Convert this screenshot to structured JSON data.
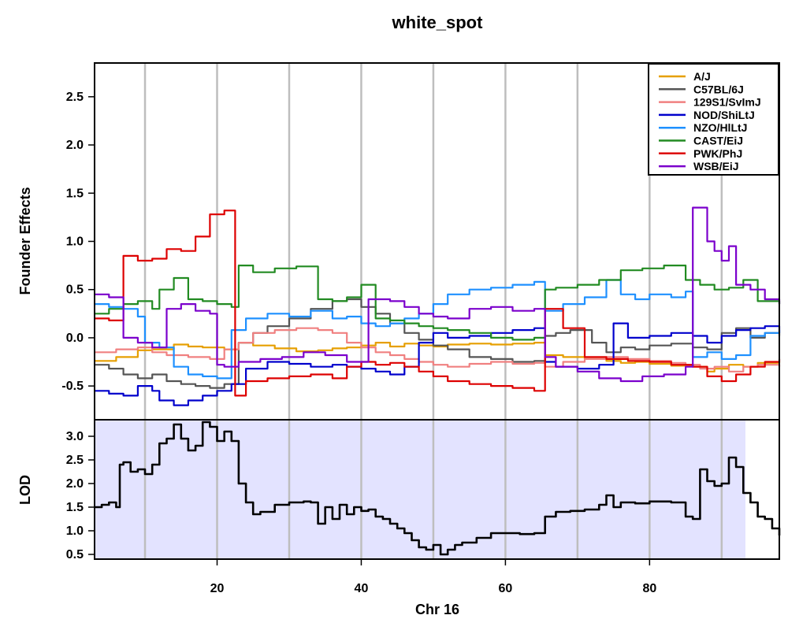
{
  "chart_data": [
    {
      "type": "line",
      "title": "white_spot",
      "ylabel": "Founder Effects",
      "xlim": [
        3,
        98
      ],
      "ylim": [
        -0.85,
        2.85
      ],
      "yticks": [
        -0.5,
        0.0,
        0.5,
        1.0,
        1.5,
        2.0,
        2.5
      ],
      "ytick_labels": [
        "-0.5",
        "0.0",
        "0.5",
        "1.0",
        "1.5",
        "2.0",
        "2.5"
      ],
      "vgrid_x": [
        10,
        20,
        30,
        40,
        50,
        60,
        70,
        80,
        90
      ],
      "legend_position": "top-right",
      "series": [
        {
          "name": "A/J",
          "color": "#E69F00",
          "step": true,
          "x": [
            3,
            6,
            9,
            11,
            14,
            16,
            18,
            21,
            23,
            25,
            28,
            31,
            34,
            36,
            38,
            40,
            42,
            44,
            46,
            48,
            50,
            52,
            55,
            58,
            61,
            64,
            65.5,
            68,
            71,
            74,
            76,
            78,
            80,
            83,
            86,
            88,
            89,
            91,
            93,
            95,
            98
          ],
          "y": [
            -0.24,
            -0.2,
            -0.13,
            -0.12,
            -0.07,
            -0.09,
            -0.1,
            -0.12,
            -0.05,
            -0.08,
            -0.11,
            -0.14,
            -0.13,
            -0.11,
            -0.1,
            -0.08,
            -0.05,
            -0.09,
            -0.06,
            -0.08,
            -0.09,
            -0.07,
            -0.06,
            -0.07,
            -0.06,
            -0.05,
            -0.18,
            -0.2,
            -0.22,
            -0.24,
            -0.26,
            -0.25,
            -0.27,
            -0.29,
            -0.3,
            -0.35,
            -0.32,
            -0.28,
            -0.3,
            -0.26,
            -0.25
          ]
        },
        {
          "name": "C57BL/6J",
          "color": "#555555",
          "step": true,
          "x": [
            3,
            5,
            7,
            9,
            11,
            13,
            15,
            17,
            19,
            21,
            23,
            25,
            27,
            30,
            33,
            36,
            38,
            40,
            42,
            44,
            46,
            48,
            50,
            52,
            55,
            58,
            61,
            64,
            65.5,
            67,
            69,
            72,
            74,
            76,
            78,
            80,
            83,
            86,
            88,
            90,
            92,
            94,
            96,
            98
          ],
          "y": [
            -0.28,
            -0.32,
            -0.38,
            -0.42,
            -0.38,
            -0.45,
            -0.48,
            -0.5,
            -0.52,
            -0.48,
            -0.05,
            0.05,
            0.12,
            0.2,
            0.3,
            0.38,
            0.4,
            0.32,
            0.25,
            0.15,
            0.05,
            -0.02,
            -0.08,
            -0.12,
            -0.2,
            -0.22,
            -0.25,
            -0.24,
            0.02,
            0.05,
            0.08,
            -0.05,
            -0.15,
            -0.1,
            -0.12,
            -0.08,
            -0.06,
            -0.1,
            -0.12,
            0.05,
            0.1,
            0.0,
            0.05,
            0.02
          ]
        },
        {
          "name": "129S1/SvImJ",
          "color": "#F08080",
          "step": true,
          "x": [
            3,
            6,
            9,
            11,
            13,
            16,
            19,
            21,
            23,
            25,
            28,
            31,
            34,
            36,
            38,
            40,
            42,
            44,
            46,
            48,
            50,
            52,
            55,
            58,
            61,
            64,
            65.5,
            68,
            71,
            74,
            77,
            80,
            83,
            85,
            87,
            89,
            91,
            93,
            95,
            98
          ],
          "y": [
            -0.15,
            -0.12,
            -0.1,
            -0.15,
            -0.18,
            -0.2,
            -0.22,
            -0.12,
            -0.05,
            0.05,
            0.08,
            0.1,
            0.08,
            0.05,
            -0.05,
            -0.1,
            -0.15,
            -0.18,
            -0.22,
            -0.25,
            -0.28,
            -0.3,
            -0.27,
            -0.25,
            -0.27,
            -0.26,
            -0.3,
            -0.25,
            -0.22,
            -0.2,
            -0.22,
            -0.24,
            -0.26,
            -0.28,
            -0.32,
            -0.3,
            -0.35,
            -0.3,
            -0.28,
            -0.3
          ]
        },
        {
          "name": "NOD/ShiLtJ",
          "color": "#0000CC",
          "step": true,
          "x": [
            3,
            5,
            7,
            9,
            11,
            12,
            14,
            16,
            18,
            20,
            22,
            24,
            27,
            30,
            33,
            36,
            38,
            40,
            42,
            44,
            46,
            48,
            50,
            52,
            55,
            58,
            61,
            64,
            65.5,
            67,
            70,
            73,
            75,
            77,
            80,
            83,
            86,
            88,
            90,
            92,
            94,
            96,
            98
          ],
          "y": [
            -0.55,
            -0.58,
            -0.6,
            -0.5,
            -0.55,
            -0.65,
            -0.7,
            -0.65,
            -0.6,
            -0.55,
            -0.48,
            -0.32,
            -0.25,
            -0.27,
            -0.3,
            -0.28,
            -0.3,
            -0.32,
            -0.35,
            -0.38,
            -0.3,
            -0.05,
            0.05,
            0.0,
            0.02,
            0.05,
            0.08,
            0.1,
            -0.25,
            -0.3,
            -0.32,
            -0.28,
            0.15,
            0.0,
            0.02,
            0.05,
            0.02,
            -0.05,
            0.02,
            0.08,
            0.1,
            0.12,
            0.05
          ]
        },
        {
          "name": "NZO/HlLtJ",
          "color": "#1E90FF",
          "step": true,
          "x": [
            3,
            5,
            7,
            9,
            10,
            12,
            14,
            16,
            18,
            20,
            22,
            24,
            27,
            30,
            33,
            36,
            38,
            40,
            42,
            44,
            46,
            48,
            50,
            52,
            55,
            58,
            61,
            64,
            65.5,
            68,
            71,
            74,
            76,
            78,
            80,
            83,
            85,
            86,
            88,
            90,
            92,
            94,
            96,
            98
          ],
          "y": [
            0.35,
            0.32,
            0.3,
            0.22,
            -0.05,
            -0.1,
            -0.3,
            -0.38,
            -0.4,
            -0.42,
            0.08,
            0.2,
            0.25,
            0.22,
            0.28,
            0.2,
            0.22,
            0.15,
            0.12,
            0.15,
            0.2,
            0.25,
            0.35,
            0.45,
            0.5,
            0.52,
            0.55,
            0.58,
            0.28,
            0.35,
            0.42,
            0.6,
            0.45,
            0.4,
            0.45,
            0.42,
            0.48,
            -0.2,
            -0.15,
            -0.22,
            -0.18,
            0.02,
            0.05,
            0.08
          ]
        },
        {
          "name": "CAST/EiJ",
          "color": "#228B22",
          "step": true,
          "x": [
            3,
            5,
            7,
            9,
            11,
            12,
            14,
            16,
            18,
            20,
            22,
            23,
            25,
            28,
            31,
            34,
            36,
            38,
            40,
            42,
            44,
            46,
            48,
            50,
            52,
            55,
            58,
            61,
            64,
            65.5,
            67,
            70,
            73,
            76,
            79,
            82,
            85,
            87,
            89,
            91,
            93,
            95,
            98
          ],
          "y": [
            0.25,
            0.3,
            0.35,
            0.38,
            0.3,
            0.5,
            0.62,
            0.4,
            0.38,
            0.35,
            0.32,
            0.75,
            0.68,
            0.72,
            0.74,
            0.4,
            0.38,
            0.42,
            0.55,
            0.2,
            0.18,
            0.15,
            0.12,
            0.1,
            0.08,
            0.05,
            0.0,
            -0.02,
            0.0,
            0.5,
            0.52,
            0.55,
            0.6,
            0.7,
            0.72,
            0.75,
            0.6,
            0.55,
            0.5,
            0.52,
            0.6,
            0.38,
            0.35
          ]
        },
        {
          "name": "PWK/PhJ",
          "color": "#DD0000",
          "step": true,
          "x": [
            3,
            5,
            7,
            9,
            11,
            13,
            15,
            17,
            19,
            21,
            22.5,
            24,
            27,
            30,
            33,
            36,
            38,
            40,
            42,
            44,
            46,
            48,
            50,
            52,
            55,
            58,
            61,
            64,
            65.5,
            68,
            71,
            74,
            77,
            80,
            83,
            86,
            88,
            90,
            92,
            94,
            96,
            98
          ],
          "y": [
            0.2,
            0.18,
            0.85,
            0.8,
            0.82,
            0.92,
            0.9,
            1.05,
            1.28,
            1.32,
            -0.6,
            -0.45,
            -0.42,
            -0.4,
            -0.38,
            -0.42,
            -0.3,
            -0.25,
            -0.28,
            -0.26,
            -0.3,
            -0.35,
            -0.4,
            -0.45,
            -0.48,
            -0.5,
            -0.52,
            -0.55,
            0.3,
            0.1,
            -0.2,
            -0.22,
            -0.24,
            -0.25,
            -0.28,
            -0.3,
            -0.4,
            -0.45,
            -0.38,
            -0.3,
            -0.25,
            -0.22
          ]
        },
        {
          "name": "WSB/EiJ",
          "color": "#7B00CC",
          "step": true,
          "x": [
            3,
            5,
            7,
            9,
            11,
            13,
            15,
            17,
            19,
            20,
            21,
            23,
            26,
            29,
            32,
            35,
            38,
            41,
            44,
            46,
            48,
            50,
            52,
            55,
            58,
            61,
            64,
            65.5,
            67,
            70,
            73,
            76,
            79,
            82,
            85,
            86,
            88,
            89,
            90,
            91,
            92,
            94,
            96,
            98
          ],
          "y": [
            0.45,
            0.42,
            0.0,
            -0.05,
            -0.1,
            0.3,
            0.35,
            0.28,
            0.25,
            -0.28,
            -0.3,
            -0.25,
            -0.22,
            -0.2,
            -0.15,
            -0.18,
            -0.25,
            0.4,
            0.38,
            0.32,
            0.25,
            0.22,
            0.2,
            0.3,
            0.32,
            0.28,
            0.3,
            -0.2,
            -0.3,
            -0.35,
            -0.42,
            -0.45,
            -0.4,
            -0.38,
            -0.3,
            1.35,
            1.0,
            0.9,
            0.8,
            0.95,
            0.55,
            0.5,
            0.4,
            0.35
          ]
        }
      ]
    },
    {
      "type": "line",
      "ylabel": "LOD",
      "xlabel": "Chr 16",
      "xlim": [
        3,
        98
      ],
      "ylim": [
        0.4,
        3.35
      ],
      "yticks": [
        0.5,
        1.0,
        1.5,
        2.0,
        2.5,
        3.0
      ],
      "ytick_labels": [
        "0.5",
        "1.0",
        "1.5",
        "2.0",
        "2.5",
        "3.0"
      ],
      "xticks": [
        20,
        40,
        60,
        80
      ],
      "xtick_labels": [
        "20",
        "40",
        "60",
        "80"
      ],
      "vgrid_x": [
        10,
        20,
        30,
        40,
        50,
        60,
        70,
        80,
        90
      ],
      "shaded_interval": [
        3,
        93.3
      ],
      "shade_color": "#E3E3FF",
      "series": [
        {
          "color": "#000000",
          "step": true,
          "x": [
            3,
            4,
            5,
            6,
            6.5,
            7,
            8,
            9,
            10,
            11,
            12,
            13,
            14,
            15,
            16,
            17,
            18,
            19,
            20,
            21,
            22,
            23,
            24,
            25,
            26,
            28,
            30,
            32,
            33,
            34,
            35,
            36,
            37,
            38,
            39,
            40,
            41,
            42,
            43,
            44,
            45,
            46,
            47,
            48,
            49,
            50,
            51,
            52,
            53,
            54,
            56,
            58,
            60,
            62,
            64,
            65.5,
            67,
            69,
            71,
            73,
            74,
            75,
            76,
            78,
            80,
            83,
            85,
            86,
            87,
            88,
            89,
            90,
            91,
            92,
            93,
            94,
            95,
            96,
            97,
            98
          ],
          "y": [
            1.5,
            1.55,
            1.6,
            1.5,
            2.4,
            2.45,
            2.25,
            2.3,
            2.2,
            2.4,
            2.85,
            2.95,
            3.25,
            2.95,
            2.7,
            2.8,
            3.3,
            3.2,
            2.9,
            3.1,
            2.9,
            2.0,
            1.6,
            1.35,
            1.4,
            1.55,
            1.6,
            1.62,
            1.6,
            1.15,
            1.5,
            1.25,
            1.55,
            1.35,
            1.5,
            1.42,
            1.45,
            1.3,
            1.25,
            1.15,
            1.05,
            0.95,
            0.8,
            0.65,
            0.6,
            0.7,
            0.5,
            0.6,
            0.7,
            0.75,
            0.85,
            0.95,
            0.95,
            0.93,
            0.95,
            1.3,
            1.4,
            1.42,
            1.45,
            1.55,
            1.75,
            1.5,
            1.6,
            1.58,
            1.62,
            1.6,
            1.3,
            1.25,
            2.3,
            2.05,
            1.95,
            2.0,
            2.55,
            2.35,
            1.8,
            1.6,
            1.3,
            1.25,
            1.05,
            0.9
          ]
        }
      ]
    }
  ],
  "legend_entries": [
    "A/J",
    "C57BL/6J",
    "129S1/SvImJ",
    "NOD/ShiLtJ",
    "NZO/HlLtJ",
    "CAST/EiJ",
    "PWK/PhJ",
    "WSB/EiJ"
  ]
}
